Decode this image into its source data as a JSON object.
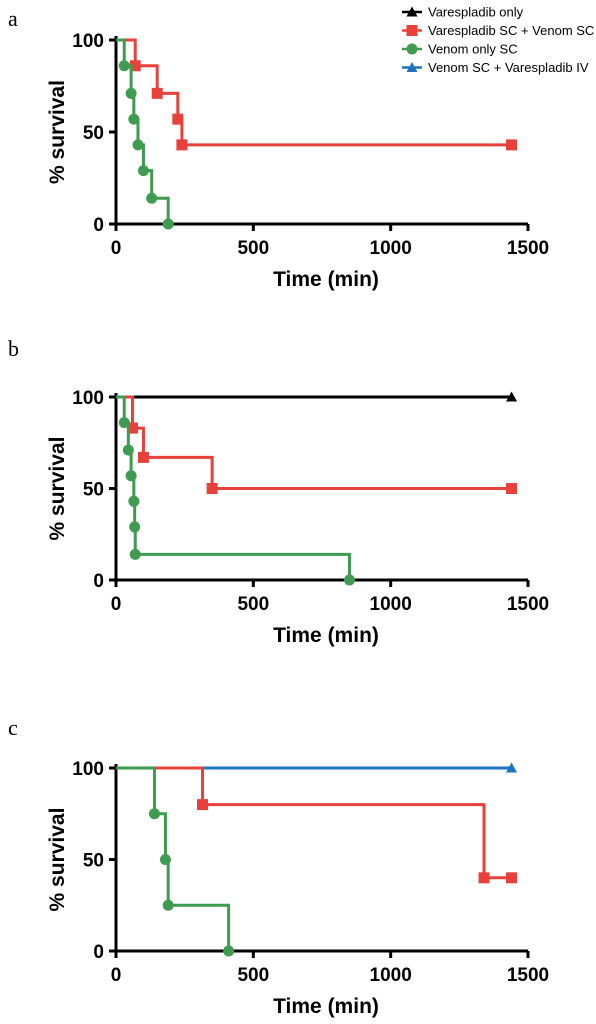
{
  "legend": [
    {
      "label": "Varespladib only",
      "color": "#000000",
      "marker": "triangle"
    },
    {
      "label": "Varespladib SC + Venom SC",
      "color": "#e8413b",
      "marker": "square"
    },
    {
      "label": "Venom only SC",
      "color": "#3e9b4f",
      "marker": "circle"
    },
    {
      "label": "Venom SC + Varespladib IV",
      "color": "#1e73be",
      "marker": "triangle"
    }
  ],
  "chart_data": [
    {
      "type": "line",
      "panel": "a",
      "xlabel": "Time (min)",
      "ylabel": "% survival",
      "xlim": [
        0,
        1500
      ],
      "ylim": [
        0,
        100
      ],
      "xticks": [
        0,
        500,
        1000,
        1500
      ],
      "yticks": [
        0,
        50,
        100
      ],
      "series": [
        {
          "name": "Varespladib SC + Venom SC",
          "color": "#e8413b",
          "marker": "square",
          "x": [
            0,
            70,
            150,
            225,
            240,
            1440
          ],
          "y": [
            100,
            86,
            71,
            57,
            43,
            43
          ]
        },
        {
          "name": "Venom only SC",
          "color": "#3e9b4f",
          "marker": "circle",
          "x": [
            0,
            30,
            55,
            65,
            80,
            100,
            130,
            190
          ],
          "y": [
            100,
            86,
            71,
            57,
            43,
            29,
            14,
            0
          ]
        }
      ]
    },
    {
      "type": "line",
      "panel": "b",
      "xlabel": "Time (min)",
      "ylabel": "% survival",
      "xlim": [
        0,
        1500
      ],
      "ylim": [
        0,
        100
      ],
      "xticks": [
        0,
        500,
        1000,
        1500
      ],
      "yticks": [
        0,
        50,
        100
      ],
      "series": [
        {
          "name": "Varespladib only",
          "color": "#000000",
          "marker": "triangle",
          "x": [
            0,
            1440
          ],
          "y": [
            100,
            100
          ]
        },
        {
          "name": "Varespladib SC + Venom SC",
          "color": "#e8413b",
          "marker": "square",
          "x": [
            0,
            60,
            100,
            350,
            1440
          ],
          "y": [
            100,
            83,
            67,
            50,
            50
          ]
        },
        {
          "name": "Venom only SC",
          "color": "#3e9b4f",
          "marker": "circle",
          "x": [
            0,
            30,
            45,
            55,
            65,
            68,
            70,
            850
          ],
          "y": [
            100,
            86,
            71,
            57,
            43,
            29,
            14,
            0
          ]
        }
      ]
    },
    {
      "type": "line",
      "panel": "c",
      "xlabel": "Time (min)",
      "ylabel": "% survival",
      "xlim": [
        0,
        1500
      ],
      "ylim": [
        0,
        100
      ],
      "xticks": [
        0,
        500,
        1000,
        1500
      ],
      "yticks": [
        0,
        50,
        100
      ],
      "series": [
        {
          "name": "Venom SC + Varespladib IV",
          "color": "#1e73be",
          "marker": "triangle",
          "x": [
            0,
            1440
          ],
          "y": [
            100,
            100
          ]
        },
        {
          "name": "Varespladib SC + Venom SC",
          "color": "#e8413b",
          "marker": "square",
          "x": [
            0,
            315,
            1340,
            1440
          ],
          "y": [
            100,
            80,
            40,
            40
          ]
        },
        {
          "name": "Venom only SC",
          "color": "#3e9b4f",
          "marker": "circle",
          "x": [
            0,
            140,
            180,
            190,
            410
          ],
          "y": [
            100,
            75,
            50,
            25,
            0
          ]
        }
      ]
    }
  ]
}
